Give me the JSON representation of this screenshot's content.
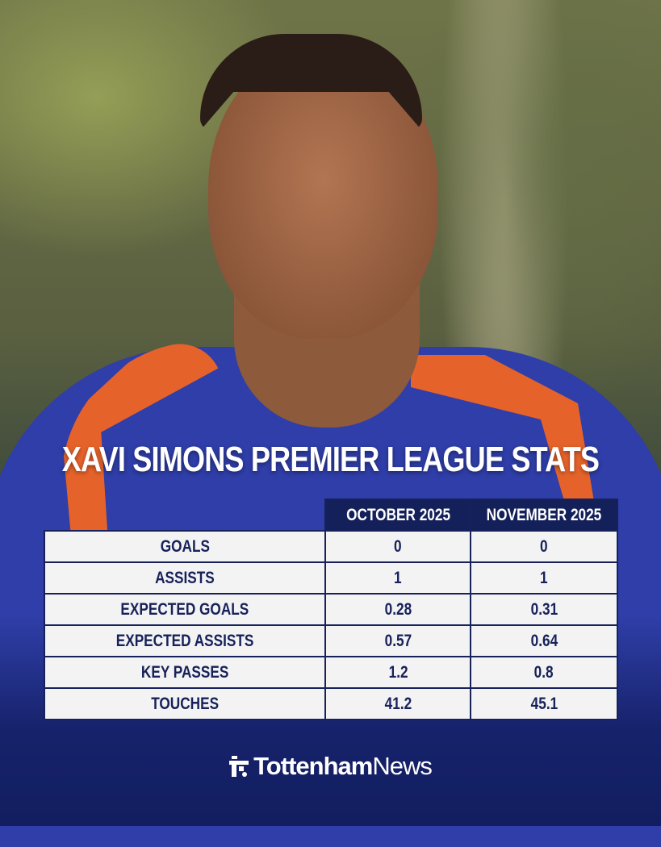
{
  "title": "XAVI SIMONS PREMIER LEAGUE STATS",
  "table": {
    "columns": [
      "",
      "OCTOBER 2025",
      "NOVEMBER 2025"
    ],
    "rows": [
      {
        "label": "GOALS",
        "october": "0",
        "november": "0"
      },
      {
        "label": "ASSISTS",
        "october": "1",
        "november": "1"
      },
      {
        "label": "EXPECTED GOALS",
        "october": "0.28",
        "november": "0.31"
      },
      {
        "label": "EXPECTED ASSISTS",
        "october": "0.57",
        "november": "0.64"
      },
      {
        "label": "KEY PASSES",
        "october": "1.2",
        "november": "0.8"
      },
      {
        "label": "TOUCHES",
        "october": "41.2",
        "november": "45.1"
      }
    ]
  },
  "brand": {
    "bold": "Tottenham",
    "regular": "News",
    "icon": "tottenham-news-logo-icon"
  },
  "colors": {
    "navy": "#14205a",
    "cell": "#f3f3f3",
    "orange": "#e5632a",
    "shirt": "#2f3ea8"
  }
}
